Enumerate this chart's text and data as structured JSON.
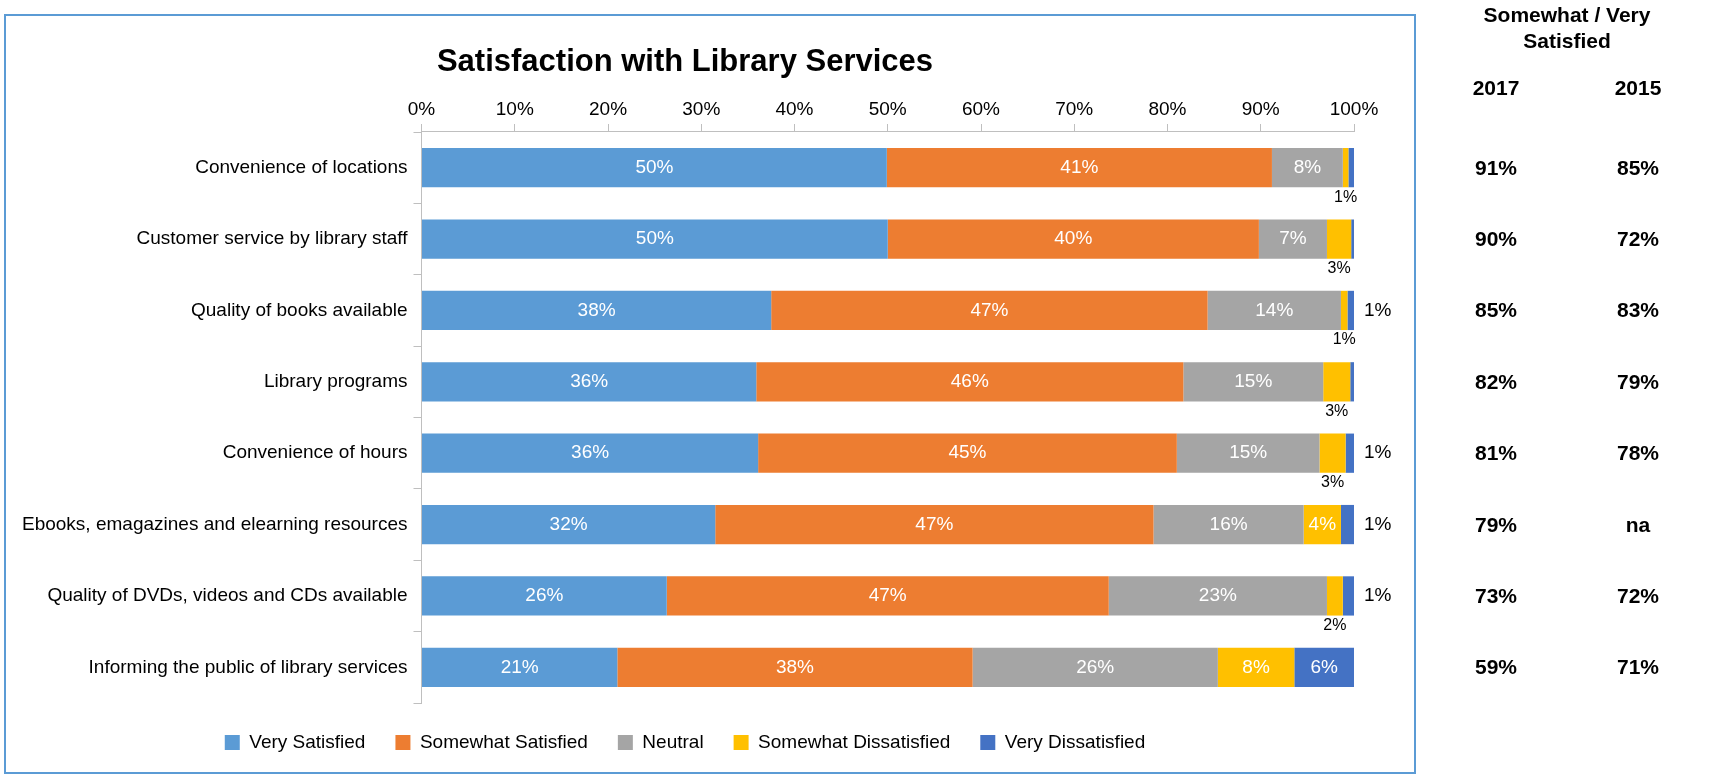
{
  "chart_data": [
    {
      "type": "bar",
      "orientation": "horizontal",
      "stacked": true,
      "title": "Satisfaction with Library Services",
      "categories": [
        "Convenience of locations",
        "Customer service by library staff",
        "Quality of books available",
        "Library programs",
        "Convenience of hours",
        "Ebooks, emagazines and elearning resources",
        "Quality of DVDs, videos and CDs available",
        "Informing the public of library services"
      ],
      "series": [
        {
          "name": "Very Satisfied",
          "color": "#5b9bd5",
          "values": [
            49.9,
            50.0,
            37.5,
            35.9,
            36.1,
            31.5,
            26.3,
            21.0
          ],
          "value_labels": [
            "50%",
            "50%",
            "38%",
            "36%",
            "36%",
            "32%",
            "26%",
            "21%"
          ]
        },
        {
          "name": "Somewhat Satisfied",
          "color": "#ed7d31",
          "values": [
            41.3,
            39.8,
            46.8,
            45.8,
            44.9,
            47.0,
            47.4,
            38.1
          ],
          "value_labels": [
            "41%",
            "40%",
            "47%",
            "46%",
            "45%",
            "47%",
            "47%",
            "38%"
          ]
        },
        {
          "name": "Neutral",
          "color": "#a5a5a5",
          "values": [
            7.6,
            7.3,
            14.3,
            15.0,
            15.3,
            16.1,
            23.4,
            26.3
          ],
          "value_labels": [
            "8%",
            "7%",
            "14%",
            "15%",
            "15%",
            "16%",
            "23%",
            "26%"
          ]
        },
        {
          "name": "Somewhat Dissatisfied",
          "color": "#ffc000",
          "values": [
            0.6,
            2.6,
            0.7,
            2.9,
            2.8,
            4.0,
            1.7,
            8.2
          ],
          "value_labels": [
            "1%",
            "3%",
            "1%",
            "3%",
            "3%",
            "4%",
            "2%",
            "8%"
          ]
        },
        {
          "name": "Very Dissatisfied",
          "color": "#4472c4",
          "values": [
            0.6,
            0.3,
            0.7,
            0.4,
            0.9,
            1.4,
            1.2,
            6.4
          ],
          "value_labels": [
            null,
            null,
            "1%",
            null,
            "1%",
            "1%",
            "1%",
            "6%"
          ]
        }
      ],
      "xlim": [
        0,
        100
      ],
      "xticks": [
        {
          "value": 0,
          "label": "0%"
        },
        {
          "value": 10,
          "label": "10%"
        },
        {
          "value": 20,
          "label": "20%"
        },
        {
          "value": 30,
          "label": "30%"
        },
        {
          "value": 40,
          "label": "40%"
        },
        {
          "value": 50,
          "label": "50%"
        },
        {
          "value": 60,
          "label": "60%"
        },
        {
          "value": 70,
          "label": "70%"
        },
        {
          "value": 80,
          "label": "80%"
        },
        {
          "value": 90,
          "label": "90%"
        },
        {
          "value": 100,
          "label": "100%"
        }
      ],
      "grid": false,
      "legend": "bottom"
    },
    {
      "type": "other",
      "title": "Somewhat / Very Satisfied",
      "categories": [
        "2017",
        "2015"
      ],
      "cell_labels": [
        [
          "91%",
          "85%"
        ],
        [
          "90%",
          "72%"
        ],
        [
          "85%",
          "83%"
        ],
        [
          "82%",
          "79%"
        ],
        [
          "81%",
          "78%"
        ],
        [
          "79%",
          "na"
        ],
        [
          "73%",
          "72%"
        ],
        [
          "59%",
          "71%"
        ]
      ]
    }
  ]
}
